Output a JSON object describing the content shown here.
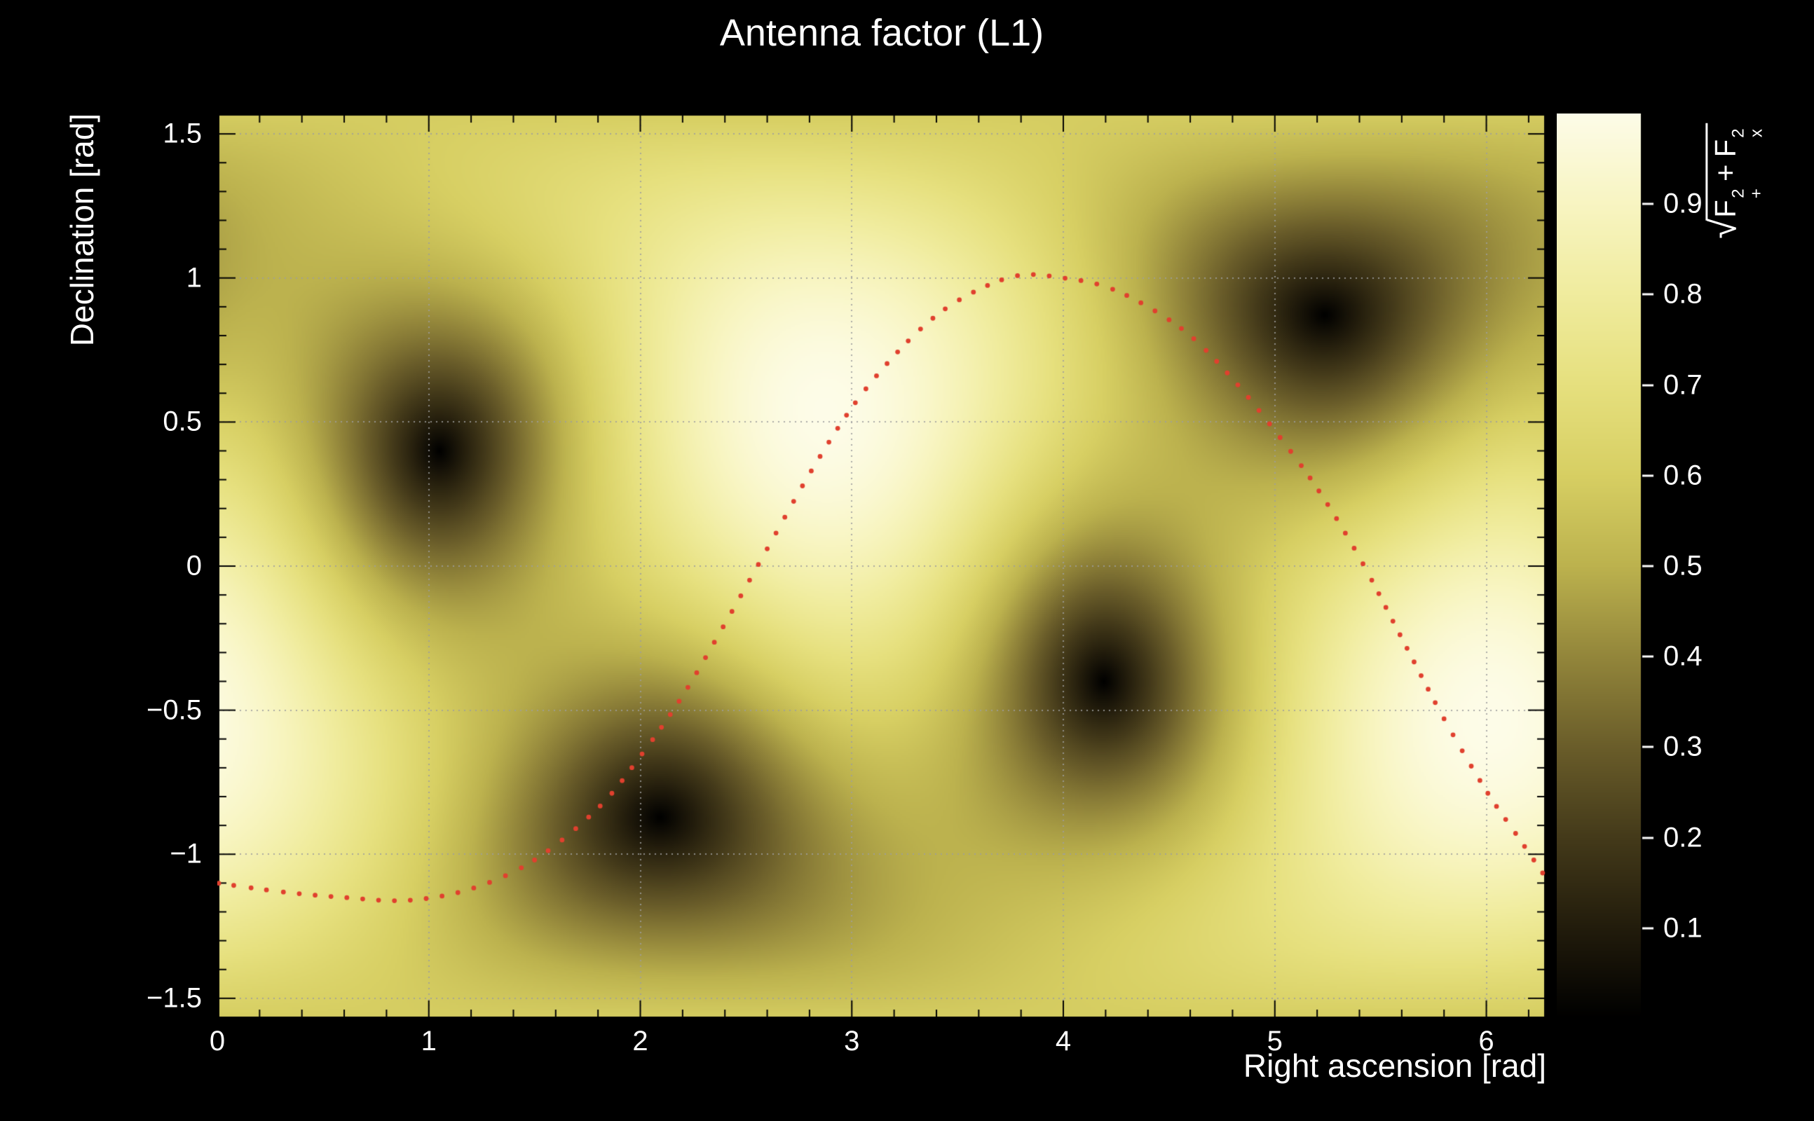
{
  "title": "Antenna factor (L1)",
  "x_axis": {
    "label": "Right ascension [rad]",
    "tick_labels": [
      "0",
      "1",
      "2",
      "3",
      "4",
      "5",
      "6"
    ],
    "tick_values": [
      0,
      1,
      2,
      3,
      4,
      5,
      6
    ],
    "minor_step": 0.2,
    "range": [
      0,
      6.2832
    ]
  },
  "y_axis": {
    "label": "Declination [rad]",
    "tick_labels": [
      "−1.5",
      "−1",
      "−0.5",
      "0",
      "0.5",
      "1",
      "1.5"
    ],
    "tick_values": [
      -1.5,
      -1,
      -0.5,
      0,
      0.5,
      1,
      1.5
    ],
    "minor_step": 0.1,
    "range": [
      -1.5708,
      1.5708
    ]
  },
  "colorbar": {
    "tick_labels": [
      "0.1",
      "0.2",
      "0.3",
      "0.4",
      "0.5",
      "0.6",
      "0.7",
      "0.8",
      "0.9"
    ],
    "tick_values": [
      0.1,
      0.2,
      0.3,
      0.4,
      0.5,
      0.6,
      0.7,
      0.8,
      0.9
    ],
    "range": [
      0,
      1
    ],
    "title": {
      "radical": "√",
      "term1_base": "F",
      "term1_sup": "2",
      "term1_sub": "+",
      "operator": "+",
      "term2_base": "F",
      "term2_sup": "2",
      "term2_sub": "x"
    }
  },
  "colors": {
    "background": "#000000",
    "text": "#ffffff",
    "grid": "#9e9e9e",
    "frame": "#000000",
    "track_dots": "#e0402e",
    "palette": [
      [
        0.0,
        "#000000"
      ],
      [
        0.1,
        "#221c0c"
      ],
      [
        0.2,
        "#443a1a"
      ],
      [
        0.3,
        "#6a5d2a"
      ],
      [
        0.4,
        "#93863b"
      ],
      [
        0.5,
        "#bcb24e"
      ],
      [
        0.6,
        "#d7cf63"
      ],
      [
        0.7,
        "#e6e07e"
      ],
      [
        0.8,
        "#f0ec9e"
      ],
      [
        0.9,
        "#f8f5c2"
      ],
      [
        1.0,
        "#fdfce8"
      ]
    ]
  },
  "chart_data": {
    "type": "heatmap",
    "title": "Antenna factor (L1)",
    "xlabel": "Right ascension [rad]",
    "ylabel": "Declination [rad]",
    "zlabel": "sqrt(F+^2 + Fx^2)",
    "x_range": [
      0,
      6.2832
    ],
    "y_range": [
      -1.5708,
      1.5708
    ],
    "z_range": [
      0,
      1
    ],
    "grid": true,
    "colormap_description": "ROOT-style dark-olive-to-cream yellow palette; dark = low antenna response, cream = response near 1",
    "pattern": "sqrt(0.25*(1+cos^2(theta))^2*sin^2(2*alpha) + cos^2(theta)*cos^2(2*alpha)); theta = angle from detector zenith, alpha = azimuth measured from first null direction; zeros (dark blobs) at the four listed sky positions",
    "null_points_radec": [
      [
        1.05,
        0.4
      ],
      [
        2.07,
        -0.86
      ],
      [
        4.19,
        -0.4
      ],
      [
        5.21,
        0.86
      ]
    ],
    "track": {
      "style": "dotted",
      "color": "#e0402e",
      "points": [
        [
          0.0,
          -1.1
        ],
        [
          0.3,
          -1.13
        ],
        [
          0.6,
          -1.15
        ],
        [
          0.9,
          -1.16
        ],
        [
          1.2,
          -1.12
        ],
        [
          1.5,
          -1.02
        ],
        [
          1.8,
          -0.84
        ],
        [
          2.0,
          -0.66
        ],
        [
          2.2,
          -0.45
        ],
        [
          2.4,
          -0.2
        ],
        [
          2.6,
          0.06
        ],
        [
          2.8,
          0.32
        ],
        [
          3.0,
          0.55
        ],
        [
          3.2,
          0.73
        ],
        [
          3.4,
          0.87
        ],
        [
          3.6,
          0.96
        ],
        [
          3.8,
          1.01
        ],
        [
          4.0,
          1.0
        ],
        [
          4.2,
          0.97
        ],
        [
          4.4,
          0.9
        ],
        [
          4.6,
          0.8
        ],
        [
          4.8,
          0.65
        ],
        [
          5.0,
          0.47
        ],
        [
          5.2,
          0.27
        ],
        [
          5.4,
          0.03
        ],
        [
          5.6,
          -0.25
        ],
        [
          5.8,
          -0.53
        ],
        [
          6.0,
          -0.78
        ],
        [
          6.15,
          -0.94
        ],
        [
          6.28,
          -1.08
        ]
      ]
    }
  }
}
